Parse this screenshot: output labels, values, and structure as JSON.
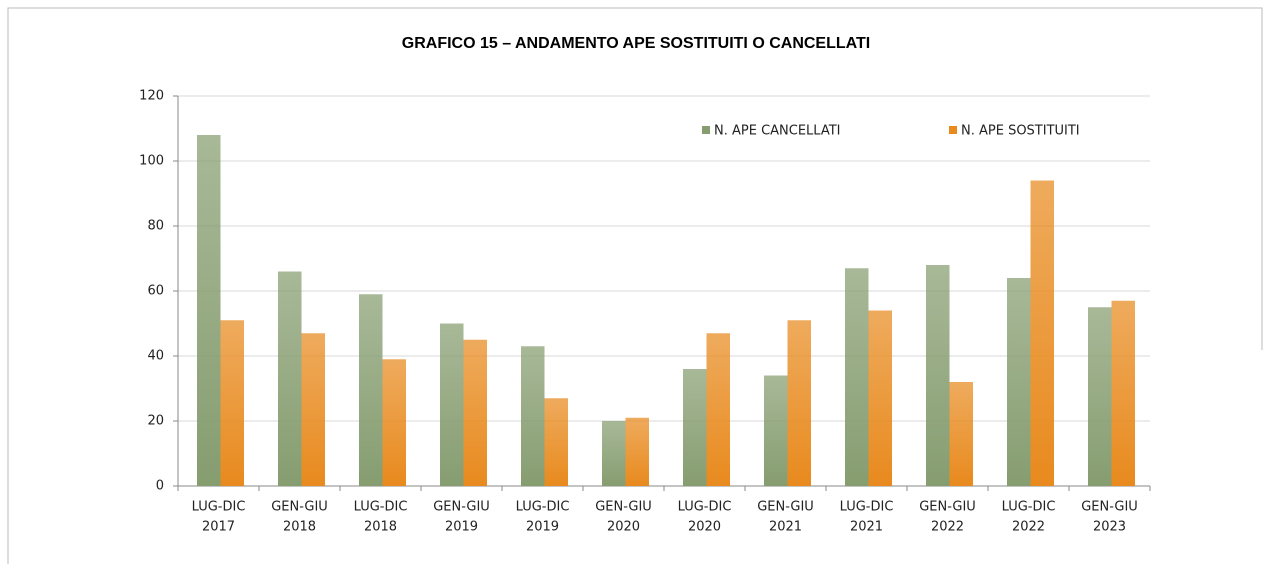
{
  "chart_data": {
    "type": "bar",
    "title": "GRAFICO 15 – ANDAMENTO APE SOSTITUITI O CANCELLATI",
    "categories": [
      [
        "LUG-DIC",
        "2017"
      ],
      [
        "GEN-GIU",
        "2018"
      ],
      [
        "LUG-DIC",
        "2018"
      ],
      [
        "GEN-GIU",
        "2019"
      ],
      [
        "LUG-DIC",
        "2019"
      ],
      [
        "GEN-GIU",
        "2020"
      ],
      [
        "LUG-DIC",
        "2020"
      ],
      [
        "GEN-GIU",
        "2021"
      ],
      [
        "LUG-DIC",
        "2021"
      ],
      [
        "GEN-GIU",
        "2022"
      ],
      [
        "LUG-DIC",
        "2022"
      ],
      [
        "GEN-GIU",
        "2023"
      ]
    ],
    "series": [
      {
        "name": "N. APE CANCELLATI",
        "color": "#869d70",
        "values": [
          108,
          66,
          59,
          50,
          43,
          20,
          36,
          34,
          67,
          68,
          64,
          55
        ]
      },
      {
        "name": "N. APE SOSTITUITI",
        "color": "#e88a1e",
        "values": [
          51,
          47,
          39,
          45,
          27,
          21,
          47,
          51,
          54,
          32,
          94,
          57
        ]
      }
    ],
    "ylim": [
      0,
      120
    ],
    "yticks": [
      0,
      20,
      40,
      60,
      80,
      100,
      120
    ],
    "grid": true,
    "legend": "top-right"
  }
}
